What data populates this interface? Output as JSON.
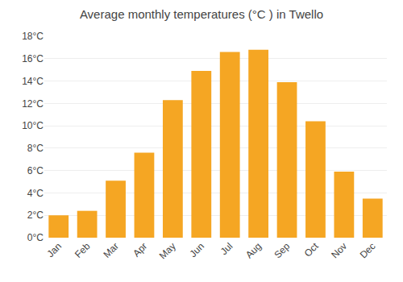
{
  "chart_data": {
    "type": "bar",
    "title": "Average monthly temperatures (°C ) in Twello",
    "categories": [
      "Jan",
      "Feb",
      "Mar",
      "Apr",
      "May",
      "Jun",
      "Jul",
      "Aug",
      "Sep",
      "Oct",
      "Nov",
      "Dec"
    ],
    "values": [
      2.0,
      2.4,
      5.1,
      7.6,
      12.3,
      14.9,
      16.6,
      16.8,
      13.9,
      10.4,
      5.9,
      3.5
    ],
    "color": "#F5A623",
    "ylim": [
      0,
      18
    ],
    "yticks": [
      {
        "value": 0,
        "label": "0°C"
      },
      {
        "value": 2,
        "label": "2°C"
      },
      {
        "value": 4,
        "label": "4°C"
      },
      {
        "value": 6,
        "label": "6°C"
      },
      {
        "value": 8,
        "label": "8°C"
      },
      {
        "value": 10,
        "label": "10°C"
      },
      {
        "value": 12,
        "label": "12°C"
      },
      {
        "value": 14,
        "label": "14°C"
      },
      {
        "value": 16,
        "label": "16°C"
      },
      {
        "value": 18,
        "label": "18°C"
      }
    ],
    "grid": true
  }
}
